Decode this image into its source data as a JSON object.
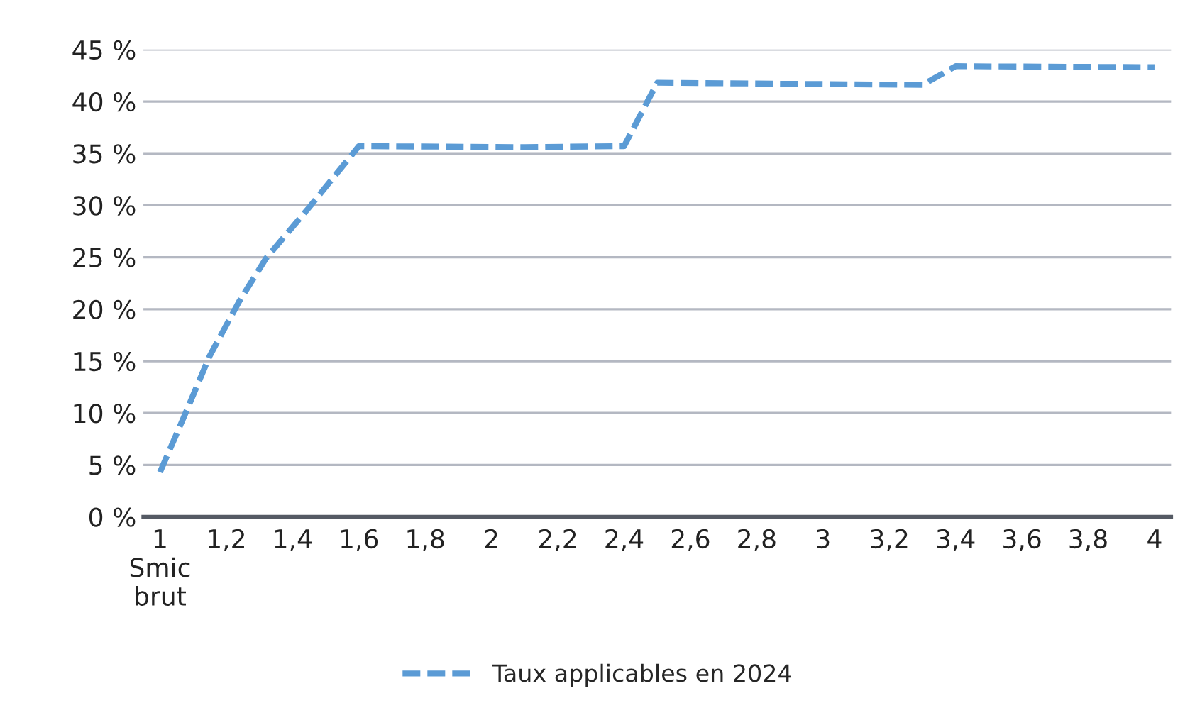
{
  "chart_data": {
    "type": "line",
    "x": [
      1,
      1.08,
      1.15,
      1.24,
      1.32,
      1.45,
      1.6,
      2.1,
      2.4,
      2.5,
      3.3,
      3.4,
      4
    ],
    "series": [
      {
        "name": "Taux applicables en 2024",
        "color": "#5b9bd5",
        "values": [
          4.3,
          10.2,
          15.5,
          20.8,
          24.9,
          29.8,
          35.7,
          35.6,
          35.7,
          41.8,
          41.6,
          43.4,
          43.3
        ]
      }
    ],
    "xlim": [
      0.95,
      4.05
    ],
    "xticks": [
      {
        "value": 1,
        "label": "1\nSmic\nbrut"
      },
      {
        "value": 1.2,
        "label": "1,2"
      },
      {
        "value": 1.4,
        "label": "1,4"
      },
      {
        "value": 1.6,
        "label": "1,6"
      },
      {
        "value": 1.8,
        "label": "1,8"
      },
      2,
      {
        "value": 2.2,
        "label": "2,2"
      },
      {
        "value": 2.4,
        "label": "2,4"
      },
      {
        "value": 2.6,
        "label": "2,6"
      },
      {
        "value": 2.8,
        "label": "2,8"
      },
      3,
      {
        "value": 3.2,
        "label": "3,2"
      },
      {
        "value": 3.4,
        "label": "3,4"
      },
      {
        "value": 3.6,
        "label": "3,6"
      },
      {
        "value": 3.8,
        "label": "3,8"
      },
      4
    ],
    "ylim": [
      0,
      45
    ],
    "yticks": [
      {
        "value": 0,
        "label": "0 %"
      },
      {
        "value": 5,
        "label": "5 %"
      },
      {
        "value": 10,
        "label": "10 %"
      },
      {
        "value": 15,
        "label": "15 %"
      },
      {
        "value": 20,
        "label": "20 %"
      },
      {
        "value": 25,
        "label": "25 %"
      },
      {
        "value": 30,
        "label": "30 %"
      },
      {
        "value": 35,
        "label": "35 %"
      },
      {
        "value": 40,
        "label": "40 %"
      },
      {
        "value": 45,
        "label": "45 %"
      }
    ],
    "grid": "y",
    "legend": "bottom",
    "line_style": "dashed",
    "marker": "none"
  }
}
